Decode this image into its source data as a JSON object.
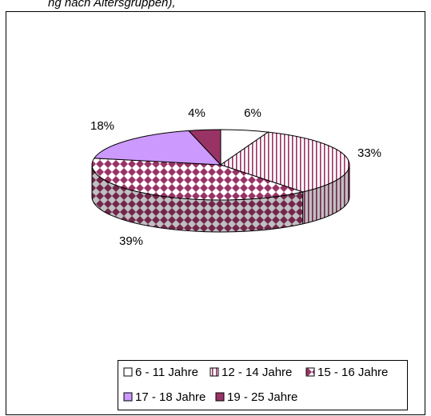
{
  "chart_data": {
    "type": "pie",
    "title": "ng nach Altersgruppen),",
    "categories": [
      "6 - 11 Jahre",
      "12 - 14 Jahre",
      "15 - 16 Jahre",
      "17 - 18 Jahre",
      "19 - 25 Jahre"
    ],
    "values": [
      6,
      33,
      39,
      18,
      4
    ],
    "value_labels": [
      "6%",
      "33%",
      "39%",
      "18%",
      "4%"
    ],
    "colors": [
      "#ffffff",
      "#993366",
      "#993366",
      "#cc99ff",
      "#993366"
    ],
    "patterns": [
      "solid",
      "vertical-stripes",
      "diamonds",
      "solid",
      "solid"
    ],
    "legend": "bottom"
  }
}
